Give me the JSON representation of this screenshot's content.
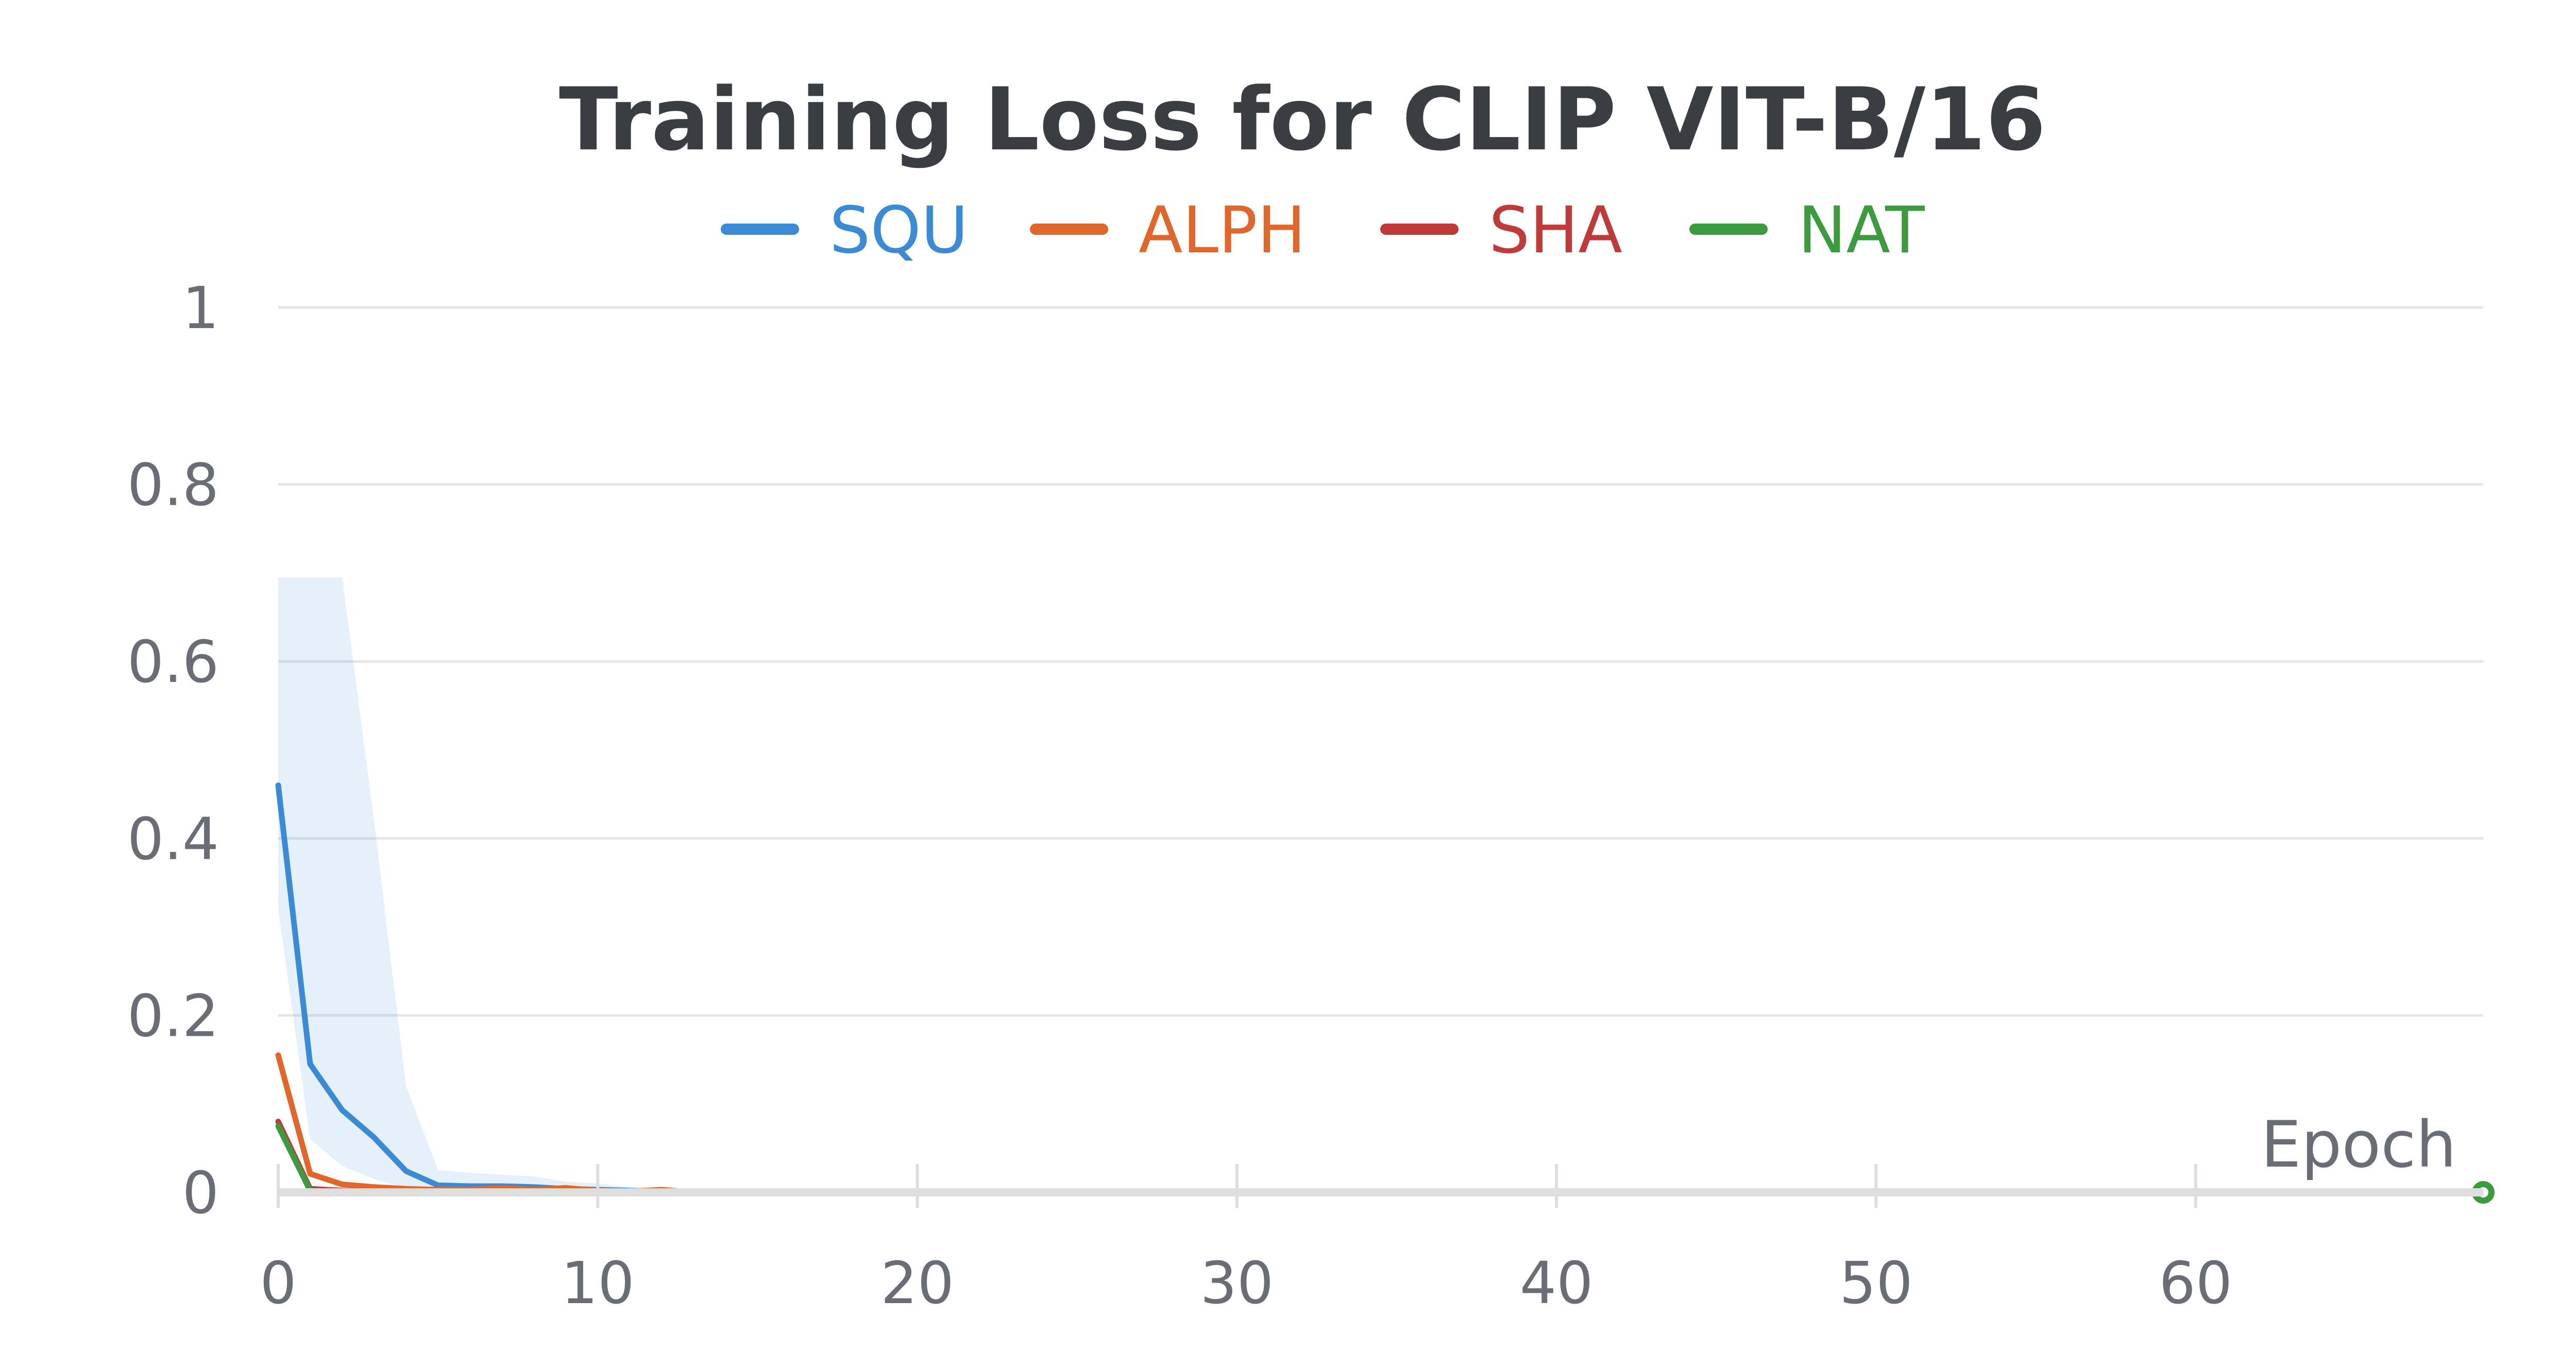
{
  "chart_data": {
    "type": "line",
    "title": "Training Loss for CLIP VIT-B/16",
    "xlabel": "Epoch",
    "ylabel": "",
    "xlim": [
      0,
      69
    ],
    "ylim": [
      0,
      1
    ],
    "x_ticks": [
      0,
      10,
      20,
      30,
      40,
      50,
      60
    ],
    "y_ticks": [
      0,
      0.2,
      0.4,
      0.6,
      0.8,
      1
    ],
    "y_tick_labels": [
      "0",
      "0.2",
      "0.4",
      "0.6",
      "0.8",
      "1"
    ],
    "x_tick_labels": [
      "0",
      "10",
      "20",
      "30",
      "40",
      "50",
      "60"
    ],
    "grid": "horizontal",
    "legend_position": "top-center",
    "series": [
      {
        "name": "SQU",
        "color": "#3a8ad6",
        "x": [
          0,
          1,
          2,
          3,
          4,
          5,
          6,
          7,
          8,
          9,
          10,
          11,
          12,
          13
        ],
        "y": [
          0.46,
          0.145,
          0.093,
          0.062,
          0.024,
          0.008,
          0.007,
          0.007,
          0.006,
          0.004,
          0.003,
          0.002,
          0.001,
          0.0
        ],
        "band_upper": [
          0.695,
          0.695,
          0.695,
          0.42,
          0.12,
          0.025,
          0.022,
          0.02,
          0.018,
          0.012,
          0.01,
          0.006,
          0.004,
          0.002
        ],
        "band_lower": [
          0.32,
          0.06,
          0.03,
          0.015,
          0.005,
          0.002,
          0.002,
          0.002,
          0.002,
          0.0,
          0.0,
          0.0,
          0.0,
          0.0
        ]
      },
      {
        "name": "ALPH",
        "color": "#e0672b",
        "x": [
          0,
          1,
          2,
          3,
          4,
          5,
          6,
          7,
          8,
          9,
          10,
          11,
          12,
          13
        ],
        "y": [
          0.155,
          0.021,
          0.009,
          0.006,
          0.004,
          0.003,
          0.003,
          0.005,
          0.003,
          0.005,
          0.002,
          0.001,
          0.003,
          0.0
        ]
      },
      {
        "name": "SHA",
        "color": "#bf3b39",
        "x": [
          0,
          1,
          2,
          3,
          4,
          5,
          6,
          7,
          8,
          9,
          10
        ],
        "y": [
          0.08,
          0.004,
          0.002,
          0.001,
          0.0,
          0.0,
          0.0,
          0.0,
          0.0,
          0.0,
          0.0
        ]
      },
      {
        "name": "NAT",
        "color": "#3d9b3f",
        "x": [
          0,
          1,
          2,
          3,
          4,
          5,
          6,
          7,
          8,
          9,
          10,
          69
        ],
        "y": [
          0.075,
          0.002,
          0.0,
          0.0,
          0.0,
          0.0,
          0.0,
          0.0,
          0.0,
          0.0,
          0.0,
          0.0
        ],
        "end_marker": true
      }
    ]
  }
}
